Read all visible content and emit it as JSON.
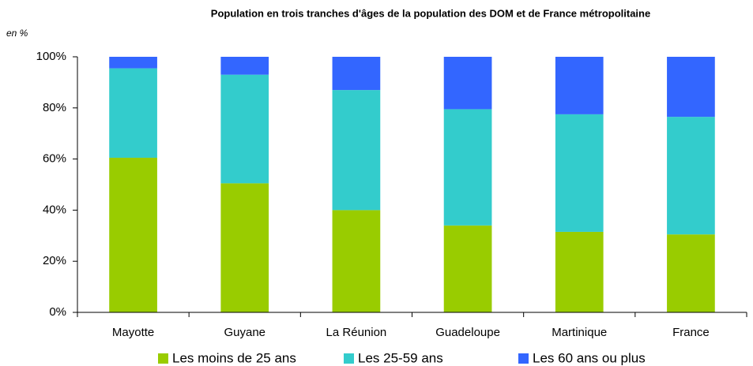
{
  "chart_data": {
    "type": "stacked_bar",
    "title": "Population en trois tranches d'âges de la population des DOM et de France métropolitaine",
    "y_label": "en %",
    "categories": [
      "Mayotte",
      "Guyane",
      "La Réunion",
      "Guadeloupe",
      "Martinique",
      "France"
    ],
    "series": [
      {
        "name": "Les moins de 25 ans",
        "color": "#99cc00",
        "values": [
          60.5,
          50.5,
          40,
          34,
          31.5,
          30.5
        ]
      },
      {
        "name": "Les 25-59 ans",
        "color": "#33cccc",
        "values": [
          35,
          42.5,
          47,
          45.5,
          46,
          46
        ]
      },
      {
        "name": "Les 60 ans ou plus",
        "color": "#3366ff",
        "values": [
          4.5,
          7,
          13,
          20.5,
          22.5,
          23.5
        ]
      }
    ],
    "ylim": [
      0,
      100
    ],
    "yticks": [
      {
        "value": 0,
        "label": "0%"
      },
      {
        "value": 20,
        "label": "20%"
      },
      {
        "value": 40,
        "label": "40%"
      },
      {
        "value": 60,
        "label": "60%"
      },
      {
        "value": 80,
        "label": "80%"
      },
      {
        "value": 100,
        "label": "100%"
      }
    ],
    "legend": "bottom"
  }
}
